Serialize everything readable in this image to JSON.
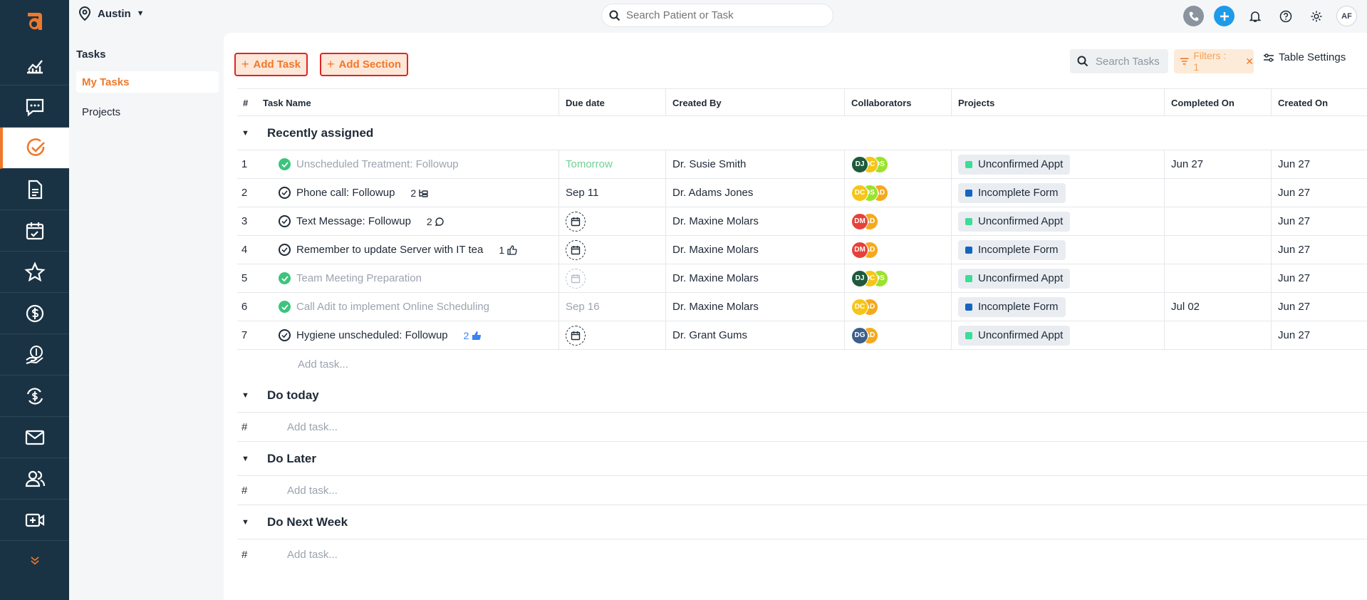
{
  "brand": {
    "logo_letter": "a",
    "accent": "#f0782a",
    "rail_bg": "#1a3344"
  },
  "rail": [
    {
      "icon": "analytics-icon"
    },
    {
      "icon": "messages-icon"
    },
    {
      "icon": "tasks-icon",
      "active": true
    },
    {
      "icon": "forms-icon"
    },
    {
      "icon": "calendar-icon"
    },
    {
      "icon": "star-icon"
    },
    {
      "icon": "billing-icon"
    },
    {
      "icon": "payment-hand-icon"
    },
    {
      "icon": "recurring-payment-icon"
    },
    {
      "icon": "mail-icon"
    },
    {
      "icon": "patients-icon"
    },
    {
      "icon": "video-icon"
    },
    {
      "icon": "expand-more-icon"
    }
  ],
  "header": {
    "location": "Austin",
    "search_placeholder": "Search Patient or Task",
    "user_initials": "AF"
  },
  "subnav": {
    "title": "Tasks",
    "items": [
      "My Tasks",
      "Projects"
    ]
  },
  "toolbar": {
    "add_task": "Add Task",
    "add_section": "Add Section",
    "search_tasks": "Search Tasks",
    "filters": "Filters : 1",
    "table_settings": "Table Settings"
  },
  "columns": [
    "#",
    "Task Name",
    "Due date",
    "Created By",
    "Collaborators",
    "Projects",
    "Completed On",
    "Created On"
  ],
  "sections": [
    {
      "title": "Recently assigned"
    },
    {
      "title": "Do today"
    },
    {
      "title": "Do Later"
    },
    {
      "title": "Do Next Week"
    }
  ],
  "add_task_label": "Add task...",
  "hash": "#",
  "tasks": [
    {
      "num": "1",
      "name": "Unscheduled Treatment: Followup",
      "done": true,
      "meta": "",
      "due": "Tomorrow",
      "created_by": "Dr. Susie Smith",
      "collaborators": [
        "DJ",
        "DC",
        "DS"
      ],
      "project": "Unconfirmed Appt",
      "completed_on": "Jun 27",
      "created_on": "Jun 27"
    },
    {
      "num": "2",
      "name": "Phone call: Followup",
      "done": false,
      "meta": "2",
      "due": "Sep 11",
      "created_by": "Dr. Adams Jones",
      "collaborators": [
        "DC",
        "DS",
        "AD"
      ],
      "project": "Incomplete Form",
      "completed_on": "",
      "created_on": "Jun 27"
    },
    {
      "num": "3",
      "name": "Text Message: Followup",
      "done": false,
      "meta": "2",
      "due": "",
      "created_by": "Dr. Maxine Molars",
      "collaborators": [
        "DM",
        "AD"
      ],
      "project": "Unconfirmed Appt",
      "completed_on": "",
      "created_on": "Jun 27"
    },
    {
      "num": "4",
      "name": "Remember to update Server with IT tea",
      "done": false,
      "meta": "1",
      "due": "",
      "created_by": "Dr. Maxine Molars",
      "collaborators": [
        "DM",
        "AD"
      ],
      "project": "Incomplete Form",
      "completed_on": "",
      "created_on": "Jun 27"
    },
    {
      "num": "5",
      "name": "Team Meeting Preparation",
      "done": true,
      "meta": "",
      "due": "",
      "created_by": "Dr. Maxine Molars",
      "collaborators": [
        "DJ",
        "DC",
        "DS"
      ],
      "project": "Unconfirmed Appt",
      "completed_on": "",
      "created_on": "Jun 27"
    },
    {
      "num": "6",
      "name": "Call Adit to implement Online Scheduling",
      "done": true,
      "meta": "",
      "due": "Sep 16",
      "created_by": "Dr. Maxine Molars",
      "collaborators": [
        "DC",
        "AD"
      ],
      "project": "Incomplete Form",
      "completed_on": "Jul 02",
      "created_on": "Jun 27"
    },
    {
      "num": "7",
      "name": "Hygiene unscheduled: Followup",
      "done": false,
      "meta": "2",
      "due": "",
      "created_by": "Dr. Grant Gums",
      "collaborators": [
        "DG",
        "AD"
      ],
      "project": "Unconfirmed Appt",
      "completed_on": "",
      "created_on": "Jun 27"
    }
  ]
}
